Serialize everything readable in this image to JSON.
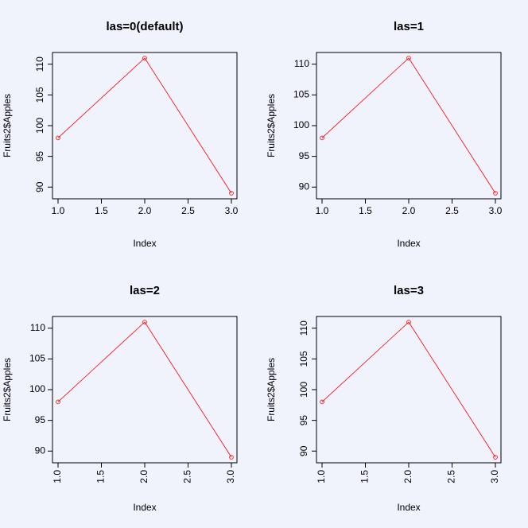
{
  "colors": {
    "background": "#f0f2fc",
    "series": "#ff0000",
    "axis": "#000000"
  },
  "chart_data": [
    {
      "type": "line",
      "title": "las=0(default)",
      "las": 0,
      "xlabel": "Index",
      "ylabel": "Fruits2$Apples",
      "x": [
        1,
        2,
        3
      ],
      "values": [
        98,
        111,
        89
      ],
      "xlim": [
        1,
        3
      ],
      "ylim": [
        89,
        111
      ],
      "xticks": [
        "1.0",
        "1.5",
        "2.0",
        "2.5",
        "3.0"
      ],
      "yticks": [
        "90",
        "95",
        "100",
        "105",
        "110"
      ]
    },
    {
      "type": "line",
      "title": "las=1",
      "las": 1,
      "xlabel": "Index",
      "ylabel": "Fruits2$Apples",
      "x": [
        1,
        2,
        3
      ],
      "values": [
        98,
        111,
        89
      ],
      "xlim": [
        1,
        3
      ],
      "ylim": [
        89,
        111
      ],
      "xticks": [
        "1.0",
        "1.5",
        "2.0",
        "2.5",
        "3.0"
      ],
      "yticks": [
        "90",
        "95",
        "100",
        "105",
        "110"
      ]
    },
    {
      "type": "line",
      "title": "las=2",
      "las": 2,
      "xlabel": "Index",
      "ylabel": "Fruits2$Apples",
      "x": [
        1,
        2,
        3
      ],
      "values": [
        98,
        111,
        89
      ],
      "xlim": [
        1,
        3
      ],
      "ylim": [
        89,
        111
      ],
      "xticks": [
        "1.0",
        "1.5",
        "2.0",
        "2.5",
        "3.0"
      ],
      "yticks": [
        "90",
        "95",
        "100",
        "105",
        "110"
      ]
    },
    {
      "type": "line",
      "title": "las=3",
      "las": 3,
      "xlabel": "Index",
      "ylabel": "Fruits2$Apples",
      "x": [
        1,
        2,
        3
      ],
      "values": [
        98,
        111,
        89
      ],
      "xlim": [
        1,
        3
      ],
      "ylim": [
        89,
        111
      ],
      "xticks": [
        "1.0",
        "1.5",
        "2.0",
        "2.5",
        "3.0"
      ],
      "yticks": [
        "90",
        "95",
        "100",
        "105",
        "110"
      ]
    }
  ]
}
